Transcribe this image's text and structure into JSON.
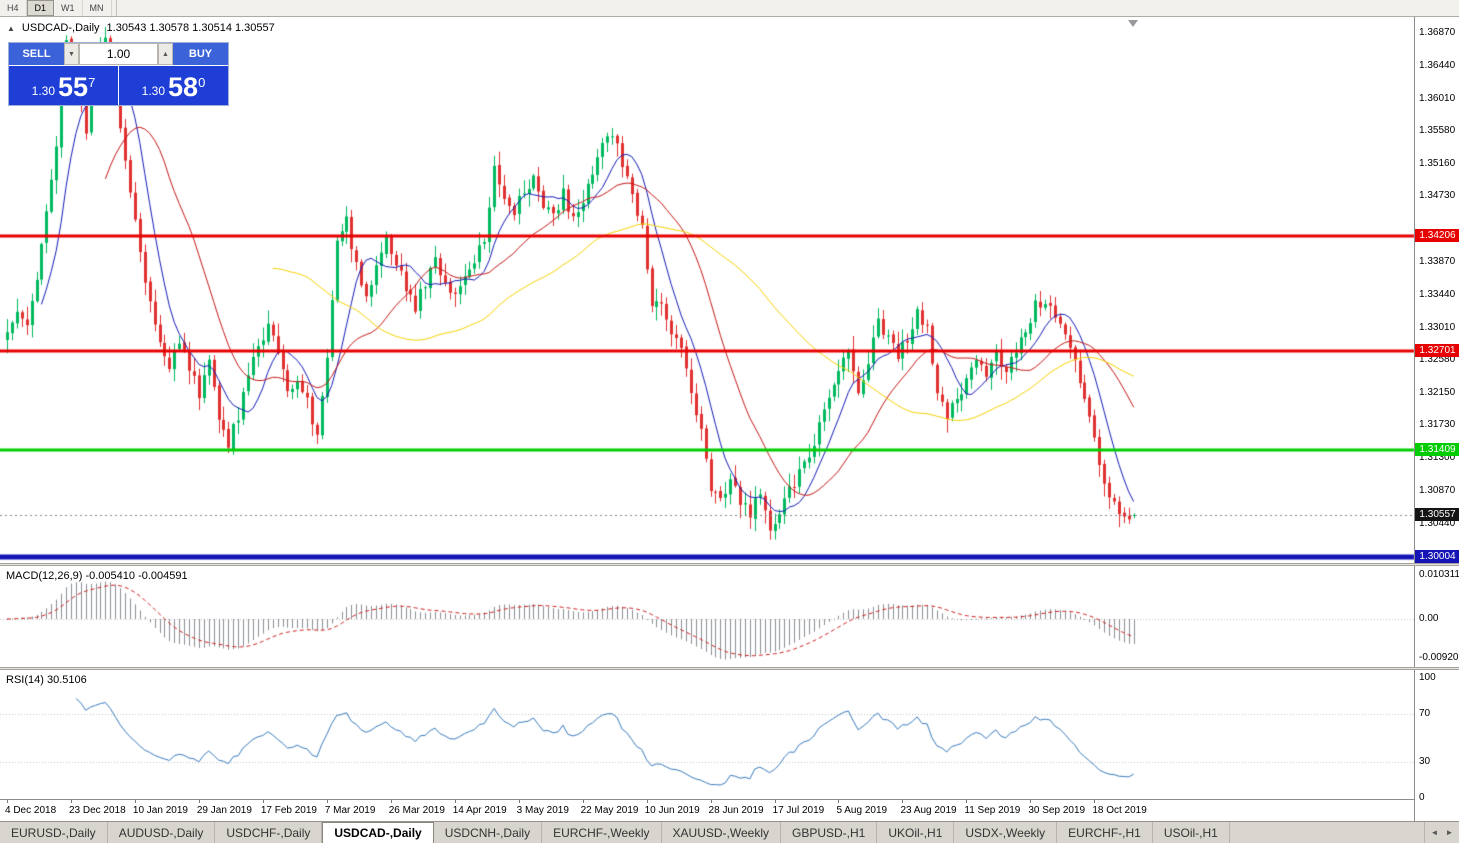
{
  "icons": {
    "symbol_marker": "▲",
    "volume_down": "▼",
    "volume_up": "▲",
    "tab_scroll_left": "◄",
    "tab_scroll_right": "►"
  },
  "toolbar": {
    "timeframes": [
      {
        "label": "H4",
        "active": false
      },
      {
        "label": "D1",
        "active": true
      },
      {
        "label": "W1",
        "active": false
      },
      {
        "label": "MN",
        "active": false
      }
    ]
  },
  "chart_header": {
    "symbol": "USDCAD-,Daily",
    "ohlc": "1.30543 1.30578 1.30514 1.30557"
  },
  "trade_panel": {
    "sell_label": "SELL",
    "buy_label": "BUY",
    "volume": "1.00",
    "sell_price": {
      "base": "1.30",
      "big": "55",
      "sup": "7"
    },
    "buy_price": {
      "base": "1.30",
      "big": "58",
      "sup": "0"
    }
  },
  "price_axis": {
    "ticks": [
      {
        "label": "1.36870",
        "value": 1.3687
      },
      {
        "label": "1.36440",
        "value": 1.3644
      },
      {
        "label": "1.36010",
        "value": 1.3601
      },
      {
        "label": "1.35580",
        "value": 1.3558
      },
      {
        "label": "1.35160",
        "value": 1.3516
      },
      {
        "label": "1.34730",
        "value": 1.3473
      },
      {
        "label": "1.33870",
        "value": 1.3387
      },
      {
        "label": "1.33440",
        "value": 1.3344
      },
      {
        "label": "1.33010",
        "value": 1.3301
      },
      {
        "label": "1.32580",
        "value": 1.3258
      },
      {
        "label": "1.32150",
        "value": 1.3215
      },
      {
        "label": "1.31730",
        "value": 1.3173
      },
      {
        "label": "1.31300",
        "value": 1.313
      },
      {
        "label": "1.30870",
        "value": 1.3087
      },
      {
        "label": "1.30440",
        "value": 1.3044
      }
    ],
    "current": {
      "label": "1.30557",
      "value": 1.30557,
      "bg": "#141414"
    },
    "lines": [
      {
        "label": "1.34206",
        "value": 1.34206,
        "color": "#e60000",
        "width": 3
      },
      {
        "label": "1.32701",
        "value": 1.32701,
        "color": "#e60000",
        "width": 3
      },
      {
        "label": "1.31409",
        "value": 1.31409,
        "color": "#00cc00",
        "width": 3
      },
      {
        "label": "1.30004",
        "value": 1.30004,
        "color": "#1515b5",
        "width": 5
      }
    ]
  },
  "macd_panel": {
    "label": "MACD(12,26,9) -0.005410 -0.004591",
    "axis": [
      {
        "label": "0.010311",
        "value": 0.010311
      },
      {
        "label": "0.00",
        "value": 0
      },
      {
        "label": "-0.00920",
        "value": -0.0092
      }
    ]
  },
  "rsi_panel": {
    "label": "RSI(14) 30.5106",
    "axis": [
      {
        "label": "100",
        "value": 100
      },
      {
        "label": "70",
        "value": 70
      },
      {
        "label": "30",
        "value": 30
      },
      {
        "label": "0",
        "value": 0
      }
    ],
    "levels": [
      70,
      30
    ]
  },
  "date_axis": [
    {
      "text": "4 Dec 2018",
      "index": 0
    },
    {
      "text": "23 Dec 2018",
      "index": 13
    },
    {
      "text": "10 Jan 2019",
      "index": 26
    },
    {
      "text": "29 Jan 2019",
      "index": 39
    },
    {
      "text": "17 Feb 2019",
      "index": 52
    },
    {
      "text": "7 Mar 2019",
      "index": 65
    },
    {
      "text": "26 Mar 2019",
      "index": 78
    },
    {
      "text": "14 Apr 2019",
      "index": 91
    },
    {
      "text": "3 May 2019",
      "index": 104
    },
    {
      "text": "22 May 2019",
      "index": 117
    },
    {
      "text": "10 Jun 2019",
      "index": 130
    },
    {
      "text": "28 Jun 2019",
      "index": 143
    },
    {
      "text": "17 Jul 2019",
      "index": 156
    },
    {
      "text": "5 Aug 2019",
      "index": 169
    },
    {
      "text": "23 Aug 2019",
      "index": 182
    },
    {
      "text": "11 Sep 2019",
      "index": 195
    },
    {
      "text": "30 Sep 2019",
      "index": 208
    },
    {
      "text": "18 Oct 2019",
      "index": 221
    }
  ],
  "tabs": [
    {
      "label": "EURUSD-,Daily",
      "active": false
    },
    {
      "label": "AUDUSD-,Daily",
      "active": false
    },
    {
      "label": "USDCHF-,Daily",
      "active": false
    },
    {
      "label": "USDCAD-,Daily",
      "active": true
    },
    {
      "label": "USDCNH-,Daily",
      "active": false
    },
    {
      "label": "EURCHF-,Weekly",
      "active": false
    },
    {
      "label": "XAUUSD-,Weekly",
      "active": false
    },
    {
      "label": "GBPUSD-,H1",
      "active": false
    },
    {
      "label": "UKOil-,H1",
      "active": false
    },
    {
      "label": "USDX-,Weekly",
      "active": false
    },
    {
      "label": "EURCHF-,H1",
      "active": false
    },
    {
      "label": "USOil-,H1",
      "active": false
    }
  ],
  "chart_data": {
    "type": "candlestick",
    "symbol": "USDCAD",
    "timeframe": "Daily",
    "last_ohlc": {
      "open": 1.30543,
      "high": 1.30578,
      "low": 1.30514,
      "close": 1.30557
    },
    "price_range": [
      1.2994,
      1.3708
    ],
    "candle_count": 230,
    "up_color": "#00b95f",
    "down_color": "#e03030",
    "moving_averages": [
      {
        "period": 8,
        "color": "#141bb4"
      },
      {
        "period": 21,
        "color": "#c41717"
      },
      {
        "period": 55,
        "color": "#f5d000"
      }
    ],
    "macd": {
      "fast": 12,
      "slow": 26,
      "signal": 9,
      "current": -0.00541,
      "current_signal": -0.004591
    },
    "rsi": {
      "period": 14,
      "current": 30.5106
    },
    "horizontal_lines": [
      1.34206,
      1.32701,
      1.31409,
      1.30004
    ],
    "close_anchors": [
      [
        0,
        1.3295
      ],
      [
        2,
        1.333
      ],
      [
        4,
        1.3312
      ],
      [
        6,
        1.337
      ],
      [
        8,
        1.3445
      ],
      [
        10,
        1.354
      ],
      [
        12,
        1.367
      ],
      [
        14,
        1.362
      ],
      [
        16,
        1.356
      ],
      [
        18,
        1.364
      ],
      [
        20,
        1.3685
      ],
      [
        21,
        1.3655
      ],
      [
        23,
        1.357
      ],
      [
        25,
        1.348
      ],
      [
        27,
        1.3405
      ],
      [
        29,
        1.333
      ],
      [
        31,
        1.328
      ],
      [
        33,
        1.3255
      ],
      [
        35,
        1.3285
      ],
      [
        37,
        1.3245
      ],
      [
        39,
        1.3215
      ],
      [
        41,
        1.3255
      ],
      [
        43,
        1.3175
      ],
      [
        45,
        1.3148
      ],
      [
        47,
        1.3185
      ],
      [
        49,
        1.324
      ],
      [
        51,
        1.3275
      ],
      [
        53,
        1.33
      ],
      [
        55,
        1.3265
      ],
      [
        57,
        1.322
      ],
      [
        59,
        1.3235
      ],
      [
        61,
        1.3205
      ],
      [
        63,
        1.316
      ],
      [
        65,
        1.327
      ],
      [
        67,
        1.342
      ],
      [
        69,
        1.344
      ],
      [
        71,
        1.338
      ],
      [
        73,
        1.3345
      ],
      [
        75,
        1.338
      ],
      [
        77,
        1.3415
      ],
      [
        79,
        1.339
      ],
      [
        81,
        1.3355
      ],
      [
        83,
        1.333
      ],
      [
        85,
        1.336
      ],
      [
        87,
        1.3385
      ],
      [
        89,
        1.3355
      ],
      [
        91,
        1.334
      ],
      [
        93,
        1.336
      ],
      [
        95,
        1.3385
      ],
      [
        97,
        1.342
      ],
      [
        99,
        1.3505
      ],
      [
        101,
        1.3475
      ],
      [
        103,
        1.3452
      ],
      [
        105,
        1.348
      ],
      [
        107,
        1.35
      ],
      [
        109,
        1.3465
      ],
      [
        111,
        1.345
      ],
      [
        113,
        1.3475
      ],
      [
        115,
        1.3442
      ],
      [
        117,
        1.347
      ],
      [
        119,
        1.35
      ],
      [
        121,
        1.3545
      ],
      [
        123,
        1.356
      ],
      [
        125,
        1.351
      ],
      [
        127,
        1.348
      ],
      [
        129,
        1.343
      ],
      [
        131,
        1.333
      ],
      [
        133,
        1.3336
      ],
      [
        135,
        1.33
      ],
      [
        137,
        1.327
      ],
      [
        139,
        1.3215
      ],
      [
        141,
        1.316
      ],
      [
        143,
        1.3095
      ],
      [
        145,
        1.307
      ],
      [
        147,
        1.31
      ],
      [
        149,
        1.3075
      ],
      [
        151,
        1.306
      ],
      [
        153,
        1.3085
      ],
      [
        155,
        1.3035
      ],
      [
        157,
        1.3055
      ],
      [
        159,
        1.309
      ],
      [
        161,
        1.311
      ],
      [
        163,
        1.313
      ],
      [
        165,
        1.317
      ],
      [
        167,
        1.3205
      ],
      [
        169,
        1.324
      ],
      [
        171,
        1.327
      ],
      [
        173,
        1.322
      ],
      [
        175,
        1.326
      ],
      [
        177,
        1.331
      ],
      [
        179,
        1.329
      ],
      [
        181,
        1.326
      ],
      [
        183,
        1.329
      ],
      [
        185,
        1.332
      ],
      [
        187,
        1.33
      ],
      [
        189,
        1.322
      ],
      [
        191,
        1.318
      ],
      [
        193,
        1.321
      ],
      [
        195,
        1.323
      ],
      [
        197,
        1.326
      ],
      [
        199,
        1.324
      ],
      [
        201,
        1.3265
      ],
      [
        203,
        1.3245
      ],
      [
        205,
        1.327
      ],
      [
        207,
        1.33
      ],
      [
        209,
        1.333
      ],
      [
        211,
        1.3335
      ],
      [
        213,
        1.332
      ],
      [
        215,
        1.329
      ],
      [
        217,
        1.325
      ],
      [
        219,
        1.321
      ],
      [
        221,
        1.315
      ],
      [
        223,
        1.3095
      ],
      [
        225,
        1.307
      ],
      [
        227,
        1.306
      ],
      [
        229,
        1.30557
      ]
    ]
  }
}
